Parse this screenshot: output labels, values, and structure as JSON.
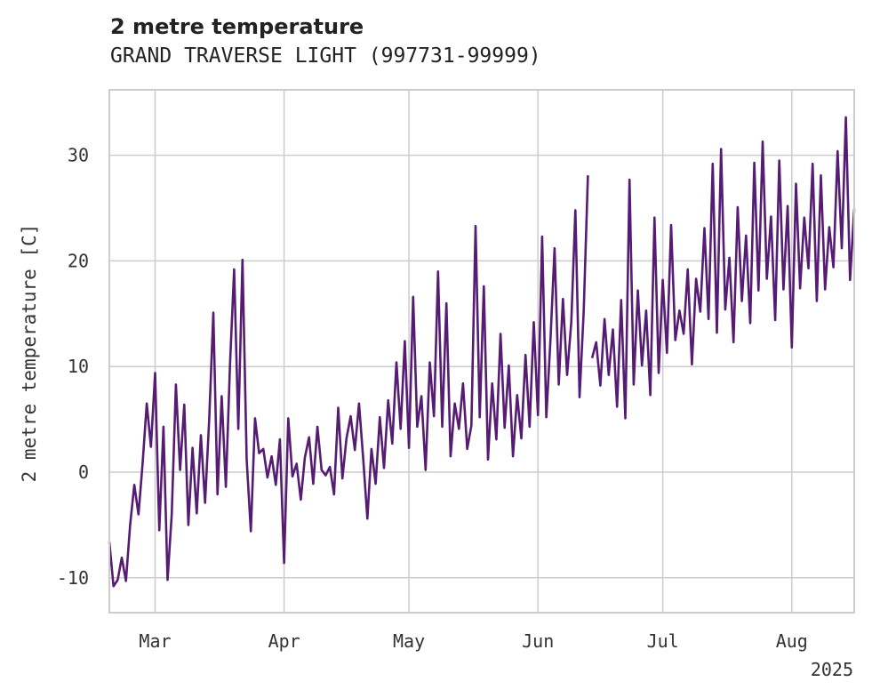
{
  "chart_data": {
    "type": "line",
    "title": "2 metre temperature",
    "subtitle": "GRAND TRAVERSE LIGHT (997731-99999)",
    "xlabel": "",
    "ylabel": "2 metre temperature [C]",
    "x_type": "date",
    "year_label": "2025",
    "xlim": [
      "2025-02-18",
      "2025-08-16"
    ],
    "ylim": [
      -13.3,
      36.2
    ],
    "x_ticks": [
      {
        "date": "2025-03-01",
        "label": "Mar"
      },
      {
        "date": "2025-04-01",
        "label": "Apr"
      },
      {
        "date": "2025-05-01",
        "label": "May"
      },
      {
        "date": "2025-06-01",
        "label": "Jun"
      },
      {
        "date": "2025-07-01",
        "label": "Jul"
      },
      {
        "date": "2025-08-01",
        "label": "Aug"
      }
    ],
    "y_ticks": [
      -10,
      0,
      10,
      20,
      30
    ],
    "grid": true,
    "line_color": "#561c73",
    "series": [
      {
        "name": "",
        "segments": [
          [
            [
              "2025-02-18",
              -6.6
            ],
            [
              "2025-02-19",
              -10.8
            ],
            [
              "2025-02-20",
              -10.2
            ],
            [
              "2025-02-21",
              -8.1
            ],
            [
              "2025-02-22",
              -10.3
            ],
            [
              "2025-02-23",
              -5.0
            ],
            [
              "2025-02-24",
              -1.2
            ],
            [
              "2025-02-25",
              -4.0
            ],
            [
              "2025-02-26",
              0.9
            ],
            [
              "2025-02-27",
              6.5
            ],
            [
              "2025-02-28",
              2.4
            ],
            [
              "2025-03-01",
              9.4
            ],
            [
              "2025-03-02",
              -5.5
            ],
            [
              "2025-03-03",
              4.3
            ],
            [
              "2025-03-04",
              -10.2
            ],
            [
              "2025-03-05",
              -4.0
            ],
            [
              "2025-03-06",
              8.3
            ],
            [
              "2025-03-07",
              0.2
            ],
            [
              "2025-03-08",
              6.4
            ],
            [
              "2025-03-09",
              -5.0
            ],
            [
              "2025-03-10",
              2.3
            ],
            [
              "2025-03-11",
              -3.9
            ],
            [
              "2025-03-12",
              3.5
            ],
            [
              "2025-03-13",
              -2.9
            ],
            [
              "2025-03-14",
              5.1
            ],
            [
              "2025-03-15",
              15.1
            ],
            [
              "2025-03-16",
              -2.1
            ],
            [
              "2025-03-17",
              7.2
            ],
            [
              "2025-03-18",
              -1.4
            ],
            [
              "2025-03-19",
              10.3
            ],
            [
              "2025-03-20",
              19.2
            ],
            [
              "2025-03-21",
              4.1
            ],
            [
              "2025-03-22",
              20.1
            ],
            [
              "2025-03-23",
              1.2
            ],
            [
              "2025-03-24",
              -5.6
            ],
            [
              "2025-03-25",
              5.1
            ],
            [
              "2025-03-26",
              1.8
            ],
            [
              "2025-03-27",
              2.2
            ],
            [
              "2025-03-28",
              -0.5
            ],
            [
              "2025-03-29",
              1.5
            ],
            [
              "2025-03-30",
              -1.2
            ],
            [
              "2025-03-31",
              3.1
            ],
            [
              "2025-04-01",
              -8.6
            ],
            [
              "2025-04-02",
              5.1
            ],
            [
              "2025-04-03",
              -0.4
            ],
            [
              "2025-04-04",
              0.8
            ],
            [
              "2025-04-05",
              -2.6
            ],
            [
              "2025-04-06",
              1.4
            ],
            [
              "2025-04-07",
              3.3
            ],
            [
              "2025-04-08",
              -1.1
            ],
            [
              "2025-04-09",
              4.3
            ],
            [
              "2025-04-10",
              0.2
            ],
            [
              "2025-04-11",
              -0.3
            ],
            [
              "2025-04-12",
              0.5
            ],
            [
              "2025-04-13",
              -2.1
            ],
            [
              "2025-04-14",
              6.1
            ],
            [
              "2025-04-15",
              -0.6
            ],
            [
              "2025-04-16",
              3.2
            ],
            [
              "2025-04-17",
              5.3
            ],
            [
              "2025-04-18",
              2.1
            ],
            [
              "2025-04-19",
              6.5
            ],
            [
              "2025-04-20",
              1.3
            ],
            [
              "2025-04-21",
              -4.4
            ],
            [
              "2025-04-22",
              2.2
            ],
            [
              "2025-04-23",
              -1.1
            ],
            [
              "2025-04-24",
              5.2
            ],
            [
              "2025-04-25",
              0.4
            ],
            [
              "2025-04-26",
              6.8
            ],
            [
              "2025-04-27",
              2.7
            ],
            [
              "2025-04-28",
              10.4
            ],
            [
              "2025-04-29",
              4.1
            ],
            [
              "2025-04-30",
              12.4
            ],
            [
              "2025-05-01",
              2.3
            ],
            [
              "2025-05-02",
              16.6
            ],
            [
              "2025-05-03",
              4.3
            ],
            [
              "2025-05-04",
              7.2
            ],
            [
              "2025-05-05",
              0.2
            ],
            [
              "2025-05-06",
              10.4
            ],
            [
              "2025-05-07",
              5.3
            ],
            [
              "2025-05-08",
              19.0
            ],
            [
              "2025-05-09",
              4.3
            ],
            [
              "2025-05-10",
              16.0
            ],
            [
              "2025-05-11",
              1.5
            ],
            [
              "2025-05-12",
              6.5
            ],
            [
              "2025-05-13",
              4.1
            ],
            [
              "2025-05-14",
              8.4
            ],
            [
              "2025-05-15",
              2.2
            ],
            [
              "2025-05-16",
              4.4
            ],
            [
              "2025-05-17",
              23.3
            ],
            [
              "2025-05-18",
              5.2
            ],
            [
              "2025-05-19",
              17.6
            ],
            [
              "2025-05-20",
              1.2
            ],
            [
              "2025-05-21",
              8.4
            ],
            [
              "2025-05-22",
              3.1
            ],
            [
              "2025-05-23",
              13.1
            ],
            [
              "2025-05-24",
              4.2
            ],
            [
              "2025-05-25",
              10.1
            ],
            [
              "2025-05-26",
              1.5
            ],
            [
              "2025-05-27",
              7.3
            ],
            [
              "2025-05-28",
              3.2
            ],
            [
              "2025-05-29",
              11.1
            ],
            [
              "2025-05-30",
              4.3
            ],
            [
              "2025-05-31",
              14.2
            ],
            [
              "2025-06-01",
              5.4
            ],
            [
              "2025-06-02",
              22.3
            ],
            [
              "2025-06-03",
              5.2
            ],
            [
              "2025-06-04",
              12.4
            ],
            [
              "2025-06-05",
              21.2
            ],
            [
              "2025-06-06",
              8.3
            ],
            [
              "2025-06-07",
              16.4
            ],
            [
              "2025-06-08",
              9.2
            ],
            [
              "2025-06-09",
              14.2
            ],
            [
              "2025-06-10",
              24.8
            ],
            [
              "2025-06-11",
              7.1
            ],
            [
              "2025-06-12",
              15.3
            ],
            [
              "2025-06-13",
              28.1
            ]
          ],
          [
            [
              "2025-06-14",
              10.8
            ],
            [
              "2025-06-15",
              12.3
            ],
            [
              "2025-06-16",
              8.2
            ],
            [
              "2025-06-17",
              14.5
            ],
            [
              "2025-06-18",
              9.2
            ],
            [
              "2025-06-19",
              13.5
            ],
            [
              "2025-06-20",
              6.2
            ],
            [
              "2025-06-21",
              16.3
            ],
            [
              "2025-06-22",
              5.1
            ],
            [
              "2025-06-23",
              27.7
            ],
            [
              "2025-06-24",
              8.3
            ],
            [
              "2025-06-25",
              17.2
            ],
            [
              "2025-06-26",
              10.1
            ],
            [
              "2025-06-27",
              15.3
            ],
            [
              "2025-06-28",
              7.3
            ],
            [
              "2025-06-29",
              24.1
            ],
            [
              "2025-06-30",
              9.4
            ],
            [
              "2025-07-01",
              18.2
            ],
            [
              "2025-07-02",
              11.3
            ],
            [
              "2025-07-03",
              23.4
            ],
            [
              "2025-07-04",
              12.5
            ],
            [
              "2025-07-05",
              15.3
            ],
            [
              "2025-07-06",
              13.1
            ],
            [
              "2025-07-07",
              19.2
            ],
            [
              "2025-07-08",
              10.2
            ],
            [
              "2025-07-09",
              18.3
            ],
            [
              "2025-07-10",
              15.2
            ],
            [
              "2025-07-11",
              23.1
            ],
            [
              "2025-07-12",
              14.5
            ],
            [
              "2025-07-13",
              29.2
            ],
            [
              "2025-07-14",
              13.2
            ],
            [
              "2025-07-15",
              30.6
            ],
            [
              "2025-07-16",
              15.4
            ],
            [
              "2025-07-17",
              20.3
            ],
            [
              "2025-07-18",
              12.3
            ],
            [
              "2025-07-19",
              25.1
            ],
            [
              "2025-07-20",
              16.2
            ],
            [
              "2025-07-21",
              22.4
            ],
            [
              "2025-07-22",
              14.1
            ],
            [
              "2025-07-23",
              29.3
            ],
            [
              "2025-07-24",
              17.2
            ],
            [
              "2025-07-25",
              31.3
            ],
            [
              "2025-07-26",
              18.3
            ],
            [
              "2025-07-27",
              24.2
            ],
            [
              "2025-07-28",
              14.4
            ],
            [
              "2025-07-29",
              29.5
            ],
            [
              "2025-07-30",
              17.3
            ],
            [
              "2025-07-31",
              25.2
            ],
            [
              "2025-08-01",
              11.8
            ],
            [
              "2025-08-02",
              27.3
            ],
            [
              "2025-08-03",
              17.4
            ],
            [
              "2025-08-04",
              24.1
            ],
            [
              "2025-08-05",
              19.3
            ],
            [
              "2025-08-06",
              29.2
            ],
            [
              "2025-08-07",
              16.2
            ],
            [
              "2025-08-08",
              28.1
            ],
            [
              "2025-08-09",
              17.3
            ],
            [
              "2025-08-10",
              23.2
            ],
            [
              "2025-08-11",
              19.4
            ],
            [
              "2025-08-12",
              30.4
            ],
            [
              "2025-08-13",
              21.2
            ],
            [
              "2025-08-14",
              33.6
            ],
            [
              "2025-08-15",
              18.2
            ],
            [
              "2025-08-16",
              24.9
            ]
          ]
        ]
      }
    ]
  }
}
